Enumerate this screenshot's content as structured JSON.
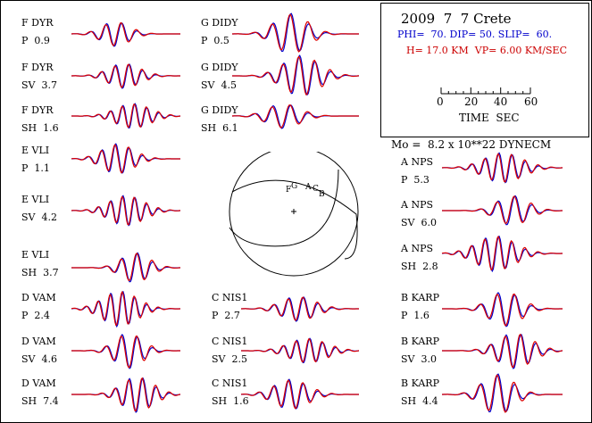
{
  "chart_data": {
    "type": "line",
    "title": "2009  7  7 Crete",
    "fault_params": "PHI=  70. DIP= 50. SLIP=  60.",
    "depth_params": "H= 17.0 KM  VP= 6.00 KM/SEC",
    "moment": "Mo =  8.2 x 10**22 DYNECM",
    "time_scale": {
      "ticks": [
        "0",
        "20",
        "40",
        "60"
      ],
      "label": "TIME  SEC"
    },
    "colors": {
      "observed": "#0000cc",
      "synthetic": "#dd0000",
      "axes": "#000000"
    },
    "traces": [
      {
        "station": "F DYR",
        "phase": "P",
        "amp": "0.9"
      },
      {
        "station": "F DYR",
        "phase": "SV",
        "amp": "3.7"
      },
      {
        "station": "F DYR",
        "phase": "SH",
        "amp": "1.6"
      },
      {
        "station": "E VLI",
        "phase": "P",
        "amp": "1.1"
      },
      {
        "station": "E VLI",
        "phase": "SV",
        "amp": "4.2"
      },
      {
        "station": "E VLI",
        "phase": "SH",
        "amp": "3.7"
      },
      {
        "station": "D VAM",
        "phase": "P",
        "amp": "2.4"
      },
      {
        "station": "D VAM",
        "phase": "SV",
        "amp": "4.6"
      },
      {
        "station": "D VAM",
        "phase": "SH",
        "amp": "7.4"
      },
      {
        "station": "G DIDY",
        "phase": "P",
        "amp": "0.5"
      },
      {
        "station": "G DIDY",
        "phase": "SV",
        "amp": "4.5"
      },
      {
        "station": "G DIDY",
        "phase": "SH",
        "amp": "6.1"
      },
      {
        "station": "C NIS1",
        "phase": "P",
        "amp": "2.7"
      },
      {
        "station": "C NIS1",
        "phase": "SV",
        "amp": "2.5"
      },
      {
        "station": "C NIS1",
        "phase": "SH",
        "amp": "1.6"
      },
      {
        "station": "A NPS",
        "phase": "P",
        "amp": "5.3"
      },
      {
        "station": "A NPS",
        "phase": "SV",
        "amp": "6.0"
      },
      {
        "station": "A NPS",
        "phase": "SH",
        "amp": "2.8"
      },
      {
        "station": "B KARP",
        "phase": "P",
        "amp": "1.6"
      },
      {
        "station": "B KARP",
        "phase": "SV",
        "amp": "3.0"
      },
      {
        "station": "B KARP",
        "phase": "SH",
        "amp": "4.4"
      }
    ],
    "beachball_labels": [
      "F",
      "G",
      "A",
      "C",
      "B"
    ]
  }
}
